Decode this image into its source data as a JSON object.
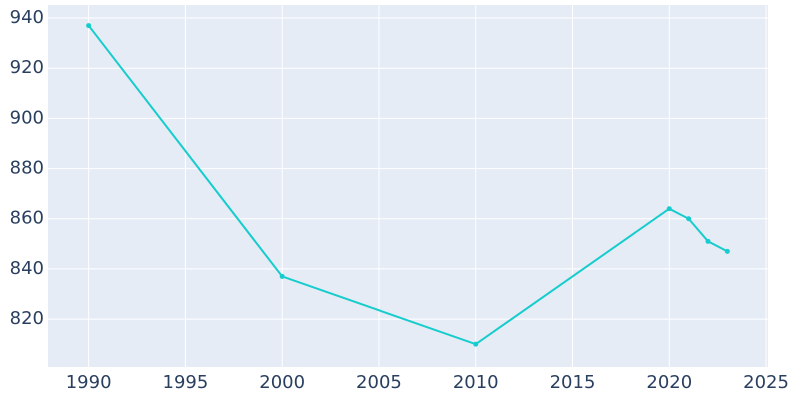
{
  "chart_data": {
    "type": "line",
    "x": [
      1990,
      2000,
      2010,
      2020,
      2021,
      2022,
      2023
    ],
    "series": [
      {
        "color": "#17cccc",
        "values": [
          937,
          837,
          810,
          864,
          860,
          851,
          847
        ]
      }
    ],
    "xlim": [
      1987.9,
      2025.1
    ],
    "xticks": [
      1990,
      1995,
      2000,
      2005,
      2010,
      2015,
      2020,
      2025
    ],
    "ylim": [
      800.9,
      945.2
    ],
    "yticks": [
      820,
      840,
      860,
      880,
      900,
      920,
      940
    ],
    "grid": true
  }
}
